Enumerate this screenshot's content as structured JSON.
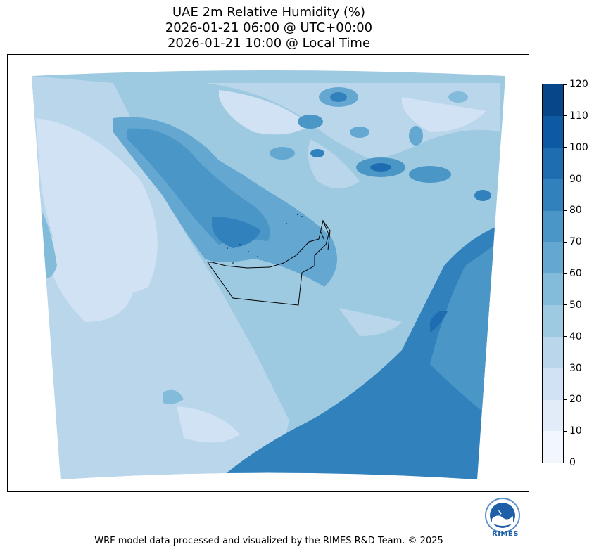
{
  "title": {
    "line1": "UAE 2m Relative Humidity (%)",
    "line2": "2026-01-21 06:00 @ UTC+00:00",
    "line3": "2026-01-21 10:00 @ Local Time"
  },
  "colorbar": {
    "levels": [
      0,
      10,
      20,
      30,
      40,
      50,
      60,
      70,
      80,
      90,
      100,
      110,
      120
    ],
    "labels": [
      "0",
      "10",
      "20",
      "30",
      "40",
      "50",
      "60",
      "70",
      "80",
      "90",
      "100",
      "110",
      "120"
    ],
    "colors": [
      "#f1f7fd",
      "#e1ecf8",
      "#d0e2f3",
      "#bad6eb",
      "#9ecae1",
      "#83bbdb",
      "#64a8d2",
      "#4a96c7",
      "#3181bd",
      "#1f6db1",
      "#0d5aa3",
      "#08468a"
    ]
  },
  "logo": {
    "text": "RIMES"
  },
  "footer": "WRF model data processed and visualized by the RIMES R&D Team. © 2025"
}
